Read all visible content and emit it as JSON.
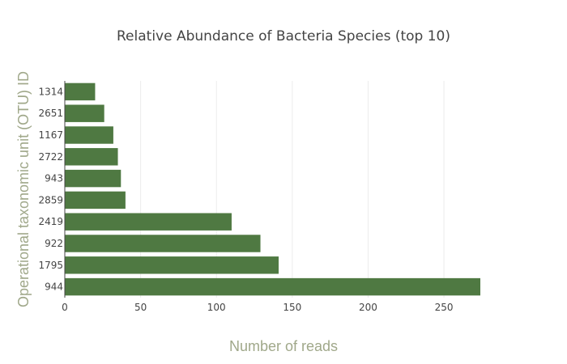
{
  "chart_data": {
    "type": "bar",
    "orientation": "horizontal",
    "title": "Relative Abundance of Bacteria Species (top 10)",
    "xlabel": "Number of reads",
    "ylabel": "Operational taxonomic unit (OTU) ID",
    "categories": [
      "944",
      "1795",
      "922",
      "2419",
      "2859",
      "943",
      "2722",
      "1167",
      "2651",
      "1314"
    ],
    "values": [
      274,
      141,
      129,
      110,
      40,
      37,
      35,
      32,
      26,
      20
    ],
    "xlim": [
      0,
      274
    ],
    "xticks": [
      0,
      50,
      100,
      150,
      200,
      250
    ],
    "grid": true,
    "legend": "none",
    "bar_color": "#4f7942"
  }
}
